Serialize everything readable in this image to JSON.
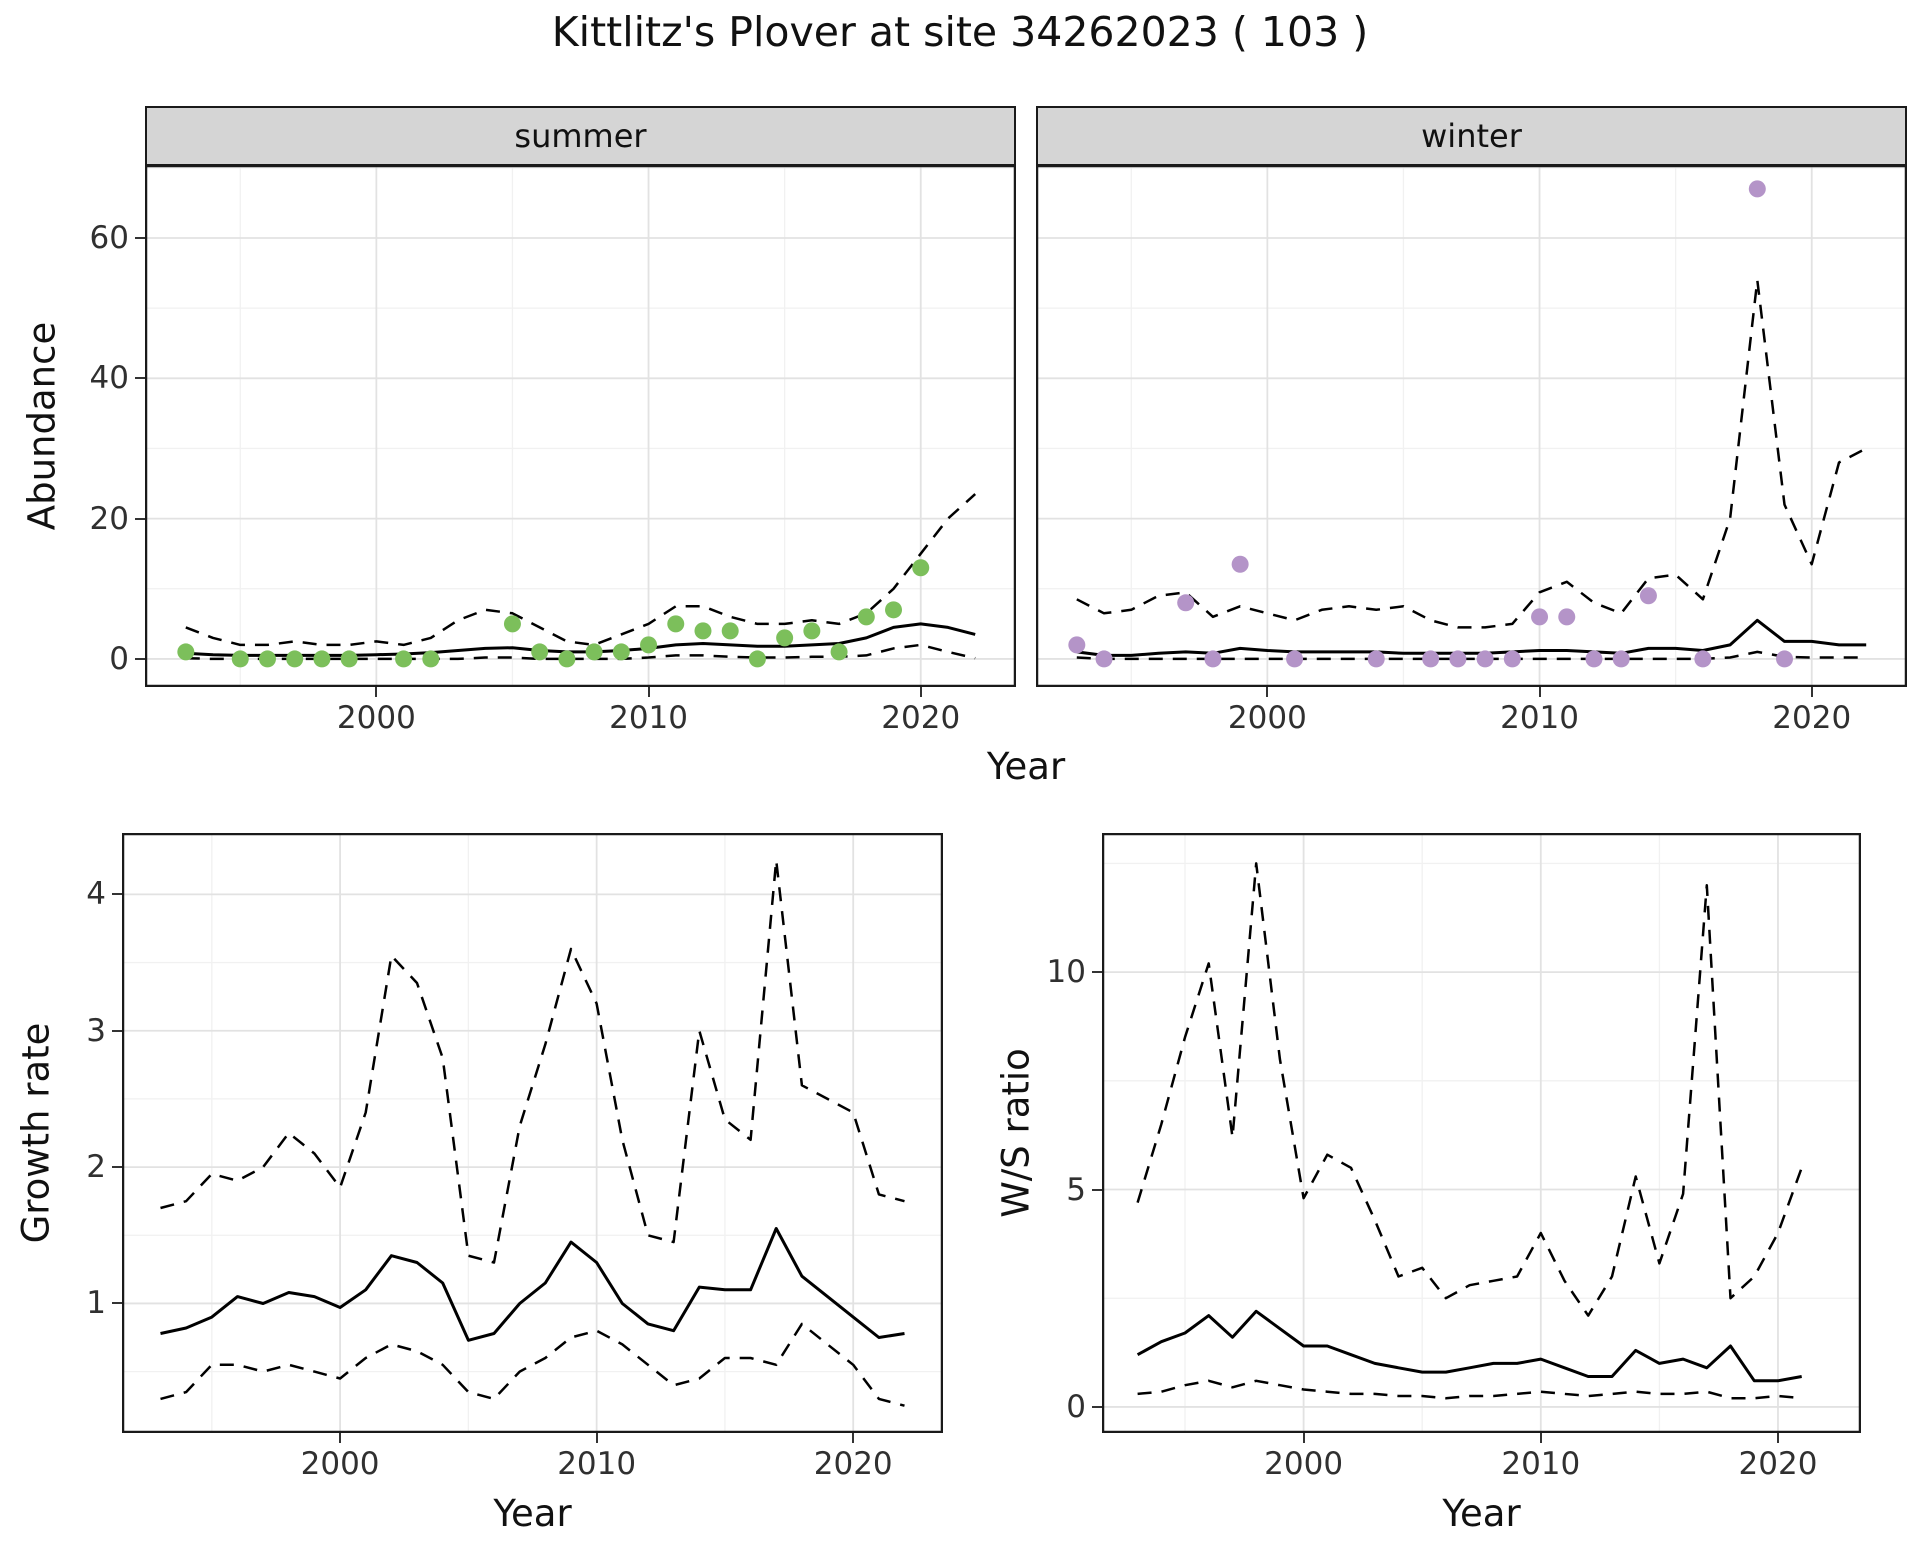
{
  "title": "Kittlitz's Plover at site 34262023 ( 103 )",
  "labels": {
    "year": "Year",
    "abundance": "Abundance",
    "growth_rate": "Growth rate",
    "ws_ratio": "W/S ratio",
    "facet_summer": "summer",
    "facet_winter": "winter"
  },
  "colors": {
    "summer_points": "#7cbf5b",
    "winter_points": "#b494c8",
    "line": "#000000",
    "border": "#1a1a1a",
    "strip_bg": "#d5d5d5",
    "grid_major": "#e2e2e2",
    "grid_minor": "#f1f1f1"
  },
  "chart_data": [
    {
      "id": "abundance-summer",
      "type": "scatter+line",
      "facet": "summer",
      "ylabel": "Abundance",
      "xlabel": "Year",
      "xlim": [
        1991.5,
        2023.5
      ],
      "ylim": [
        -4,
        70.4
      ],
      "xticks": [
        2000,
        2010,
        2020
      ],
      "yticks": [
        0,
        20,
        40,
        60
      ],
      "show_y_ticks": true,
      "points": {
        "color": "#7cbf5b",
        "x": [
          1993,
          1995,
          1996,
          1997,
          1998,
          1999,
          2001,
          2002,
          2005,
          2006,
          2007,
          2008,
          2009,
          2010,
          2011,
          2012,
          2013,
          2014,
          2015,
          2016,
          2017,
          2018,
          2019,
          2020
        ],
        "y": [
          1,
          0,
          0,
          0,
          0,
          0,
          0,
          0,
          5,
          1,
          0,
          1,
          1,
          2,
          5,
          4,
          4,
          0,
          3,
          4,
          1,
          6,
          7,
          13
        ]
      },
      "lines": [
        {
          "name": "fit",
          "style": "solid",
          "x": [
            1993,
            1994,
            1995,
            1996,
            1997,
            1998,
            1999,
            2000,
            2001,
            2002,
            2003,
            2004,
            2005,
            2006,
            2007,
            2008,
            2009,
            2010,
            2011,
            2012,
            2013,
            2014,
            2015,
            2016,
            2017,
            2018,
            2019,
            2020,
            2021,
            2022
          ],
          "y": [
            0.8,
            0.6,
            0.5,
            0.5,
            0.5,
            0.5,
            0.5,
            0.6,
            0.7,
            0.9,
            1.2,
            1.5,
            1.6,
            1.2,
            1.0,
            1.0,
            1.2,
            1.5,
            2.0,
            2.2,
            2.0,
            1.8,
            1.8,
            2.0,
            2.2,
            3.0,
            4.5,
            5.0,
            4.5,
            3.5
          ]
        },
        {
          "name": "upper-ci",
          "style": "dashed",
          "x": [
            1993,
            1994,
            1995,
            1996,
            1997,
            1998,
            1999,
            2000,
            2001,
            2002,
            2003,
            2004,
            2005,
            2006,
            2007,
            2008,
            2009,
            2010,
            2011,
            2012,
            2013,
            2014,
            2015,
            2016,
            2017,
            2018,
            2019,
            2020,
            2021,
            2022
          ],
          "y": [
            4.5,
            3.0,
            2.0,
            2.0,
            2.5,
            2.0,
            2.0,
            2.5,
            2.0,
            3.0,
            5.5,
            7.0,
            6.5,
            4.5,
            2.5,
            2.0,
            3.5,
            5.0,
            7.5,
            7.5,
            6.0,
            5.0,
            5.0,
            5.5,
            5.0,
            6.5,
            10.0,
            15.0,
            20.0,
            23.5
          ]
        },
        {
          "name": "lower-ci",
          "style": "dashed",
          "x": [
            1993,
            1994,
            1995,
            1996,
            1997,
            1998,
            1999,
            2000,
            2001,
            2002,
            2003,
            2004,
            2005,
            2006,
            2007,
            2008,
            2009,
            2010,
            2011,
            2012,
            2013,
            2014,
            2015,
            2016,
            2017,
            2018,
            2019,
            2020,
            2021,
            2022
          ],
          "y": [
            0.1,
            0,
            0,
            0,
            0,
            0,
            0,
            0,
            0,
            0,
            0,
            0.2,
            0.2,
            0,
            0,
            0,
            0,
            0.2,
            0.5,
            0.5,
            0.3,
            0.2,
            0.2,
            0.3,
            0.3,
            0.5,
            1.5,
            2.0,
            1.0,
            0.1
          ]
        }
      ]
    },
    {
      "id": "abundance-winter",
      "type": "scatter+line",
      "facet": "winter",
      "ylabel": "Abundance",
      "xlabel": "Year",
      "xlim": [
        1991.5,
        2023.5
      ],
      "ylim": [
        -4,
        70.4
      ],
      "xticks": [
        2000,
        2010,
        2020
      ],
      "yticks": [
        0,
        20,
        40,
        60
      ],
      "show_y_ticks": false,
      "points": {
        "color": "#b494c8",
        "x": [
          1993,
          1994,
          1997,
          1998,
          1999,
          2001,
          2004,
          2006,
          2007,
          2008,
          2009,
          2010,
          2011,
          2012,
          2013,
          2014,
          2016,
          2018,
          2019
        ],
        "y": [
          2,
          0,
          8,
          0,
          13.5,
          0,
          0,
          0,
          0,
          0,
          0,
          6,
          6,
          0,
          0,
          9,
          0,
          67,
          0
        ]
      },
      "lines": [
        {
          "name": "fit",
          "style": "solid",
          "x": [
            1993,
            1994,
            1995,
            1996,
            1997,
            1998,
            1999,
            2000,
            2001,
            2002,
            2003,
            2004,
            2005,
            2006,
            2007,
            2008,
            2009,
            2010,
            2011,
            2012,
            2013,
            2014,
            2015,
            2016,
            2017,
            2018,
            2019,
            2020,
            2021,
            2022
          ],
          "y": [
            1.0,
            0.5,
            0.5,
            0.8,
            1.0,
            0.8,
            1.5,
            1.2,
            1.0,
            1.0,
            1.0,
            1.0,
            0.8,
            0.8,
            0.8,
            0.8,
            1.0,
            1.2,
            1.2,
            1.0,
            0.8,
            1.5,
            1.5,
            1.2,
            2.0,
            5.5,
            2.5,
            2.5,
            2.0,
            2.0
          ]
        },
        {
          "name": "upper-ci",
          "style": "dashed",
          "x": [
            1993,
            1994,
            1995,
            1996,
            1997,
            1998,
            1999,
            2000,
            2001,
            2002,
            2003,
            2004,
            2005,
            2006,
            2007,
            2008,
            2009,
            2010,
            2011,
            2012,
            2013,
            2014,
            2015,
            2016,
            2017,
            2018,
            2019,
            2020,
            2021,
            2022
          ],
          "y": [
            8.5,
            6.5,
            7.0,
            9.0,
            9.5,
            6.0,
            7.5,
            6.5,
            5.5,
            7.0,
            7.5,
            7.0,
            7.5,
            5.5,
            4.5,
            4.5,
            5.0,
            9.5,
            11.0,
            8.0,
            6.5,
            11.5,
            12.0,
            8.5,
            20.0,
            54.0,
            22.0,
            13.5,
            28.0,
            30.0
          ]
        },
        {
          "name": "lower-ci",
          "style": "dashed",
          "x": [
            1993,
            1994,
            1995,
            1996,
            1997,
            1998,
            1999,
            2000,
            2001,
            2002,
            2003,
            2004,
            2005,
            2006,
            2007,
            2008,
            2009,
            2010,
            2011,
            2012,
            2013,
            2014,
            2015,
            2016,
            2017,
            2018,
            2019,
            2020,
            2021,
            2022
          ],
          "y": [
            0.2,
            0,
            0,
            0,
            0,
            0,
            0,
            0,
            0,
            0,
            0,
            0,
            0,
            0,
            0,
            0,
            0,
            0,
            0,
            0,
            0,
            0,
            0,
            0,
            0.2,
            1.0,
            0.3,
            0.2,
            0.2,
            0.2
          ]
        }
      ]
    },
    {
      "id": "growth-rate",
      "type": "line",
      "ylabel": "Growth rate",
      "xlabel": "Year",
      "xlim": [
        1991.5,
        2023.5
      ],
      "ylim": [
        0.05,
        4.45
      ],
      "xticks": [
        2000,
        2010,
        2020
      ],
      "yticks": [
        1,
        2,
        3,
        4
      ],
      "show_y_ticks": true,
      "lines": [
        {
          "name": "fit",
          "style": "solid",
          "x": [
            1993,
            1994,
            1995,
            1996,
            1997,
            1998,
            1999,
            2000,
            2001,
            2002,
            2003,
            2004,
            2005,
            2006,
            2007,
            2008,
            2009,
            2010,
            2011,
            2012,
            2013,
            2014,
            2015,
            2016,
            2017,
            2018,
            2019,
            2020,
            2021,
            2022
          ],
          "y": [
            0.78,
            0.82,
            0.9,
            1.05,
            1.0,
            1.08,
            1.05,
            0.97,
            1.1,
            1.35,
            1.3,
            1.15,
            0.73,
            0.78,
            1.0,
            1.15,
            1.45,
            1.3,
            1.0,
            0.85,
            0.8,
            1.12,
            1.1,
            1.1,
            1.55,
            1.2,
            1.05,
            0.9,
            0.75,
            0.78
          ]
        },
        {
          "name": "upper-ci",
          "style": "dashed",
          "x": [
            1993,
            1994,
            1995,
            1996,
            1997,
            1998,
            1999,
            2000,
            2001,
            2002,
            2003,
            2004,
            2005,
            2006,
            2007,
            2008,
            2009,
            2010,
            2011,
            2012,
            2013,
            2014,
            2015,
            2016,
            2017,
            2018,
            2019,
            2020,
            2021,
            2022
          ],
          "y": [
            1.7,
            1.75,
            1.95,
            1.9,
            2.0,
            2.25,
            2.1,
            1.85,
            2.4,
            3.55,
            3.35,
            2.8,
            1.35,
            1.3,
            2.3,
            2.9,
            3.6,
            3.2,
            2.2,
            1.5,
            1.45,
            3.0,
            2.35,
            2.2,
            4.25,
            2.6,
            2.5,
            2.4,
            1.8,
            1.75
          ]
        },
        {
          "name": "lower-ci",
          "style": "dashed",
          "x": [
            1993,
            1994,
            1995,
            1996,
            1997,
            1998,
            1999,
            2000,
            2001,
            2002,
            2003,
            2004,
            2005,
            2006,
            2007,
            2008,
            2009,
            2010,
            2011,
            2012,
            2013,
            2014,
            2015,
            2016,
            2017,
            2018,
            2019,
            2020,
            2021,
            2022
          ],
          "y": [
            0.3,
            0.35,
            0.55,
            0.55,
            0.5,
            0.55,
            0.5,
            0.45,
            0.6,
            0.7,
            0.65,
            0.55,
            0.35,
            0.3,
            0.5,
            0.6,
            0.75,
            0.8,
            0.7,
            0.55,
            0.4,
            0.45,
            0.6,
            0.6,
            0.55,
            0.85,
            0.7,
            0.55,
            0.3,
            0.25
          ]
        }
      ]
    },
    {
      "id": "ws-ratio",
      "type": "line",
      "ylabel": "W/S ratio",
      "xlabel": "Year",
      "xlim": [
        1991.5,
        2023.5
      ],
      "ylim": [
        -0.6,
        13.2
      ],
      "xticks": [
        2000,
        2010,
        2020
      ],
      "yticks": [
        0,
        5,
        10
      ],
      "show_y_ticks": true,
      "lines": [
        {
          "name": "fit",
          "style": "solid",
          "x": [
            1993,
            1994,
            1995,
            1996,
            1997,
            1998,
            1999,
            2000,
            2001,
            2002,
            2003,
            2004,
            2005,
            2006,
            2007,
            2008,
            2009,
            2010,
            2011,
            2012,
            2013,
            2014,
            2015,
            2016,
            2017,
            2018,
            2019,
            2020,
            2021
          ],
          "y": [
            1.2,
            1.5,
            1.7,
            2.1,
            1.6,
            2.2,
            1.8,
            1.4,
            1.4,
            1.2,
            1.0,
            0.9,
            0.8,
            0.8,
            0.9,
            1.0,
            1.0,
            1.1,
            0.9,
            0.7,
            0.7,
            1.3,
            1.0,
            1.1,
            0.9,
            1.4,
            0.6,
            0.6,
            0.7
          ]
        },
        {
          "name": "upper-ci",
          "style": "dashed",
          "x": [
            1993,
            1994,
            1995,
            1996,
            1997,
            1998,
            1999,
            2000,
            2001,
            2002,
            2003,
            2004,
            2005,
            2006,
            2007,
            2008,
            2009,
            2010,
            2011,
            2012,
            2013,
            2014,
            2015,
            2016,
            2017,
            2018,
            2019,
            2020,
            2021
          ],
          "y": [
            4.7,
            6.5,
            8.5,
            10.2,
            6.2,
            12.5,
            8.0,
            4.8,
            5.8,
            5.5,
            4.3,
            3.0,
            3.2,
            2.5,
            2.8,
            2.9,
            3.0,
            4.0,
            2.9,
            2.1,
            3.0,
            5.3,
            3.3,
            4.9,
            12.0,
            2.5,
            3.0,
            4.0,
            5.5
          ]
        },
        {
          "name": "lower-ci",
          "style": "dashed",
          "x": [
            1993,
            1994,
            1995,
            1996,
            1997,
            1998,
            1999,
            2000,
            2001,
            2002,
            2003,
            2004,
            2005,
            2006,
            2007,
            2008,
            2009,
            2010,
            2011,
            2012,
            2013,
            2014,
            2015,
            2016,
            2017,
            2018,
            2019,
            2020,
            2021
          ],
          "y": [
            0.3,
            0.35,
            0.5,
            0.6,
            0.45,
            0.6,
            0.5,
            0.4,
            0.35,
            0.3,
            0.3,
            0.25,
            0.25,
            0.2,
            0.25,
            0.25,
            0.3,
            0.35,
            0.3,
            0.25,
            0.3,
            0.35,
            0.3,
            0.3,
            0.35,
            0.2,
            0.2,
            0.25,
            0.2
          ]
        }
      ]
    }
  ]
}
